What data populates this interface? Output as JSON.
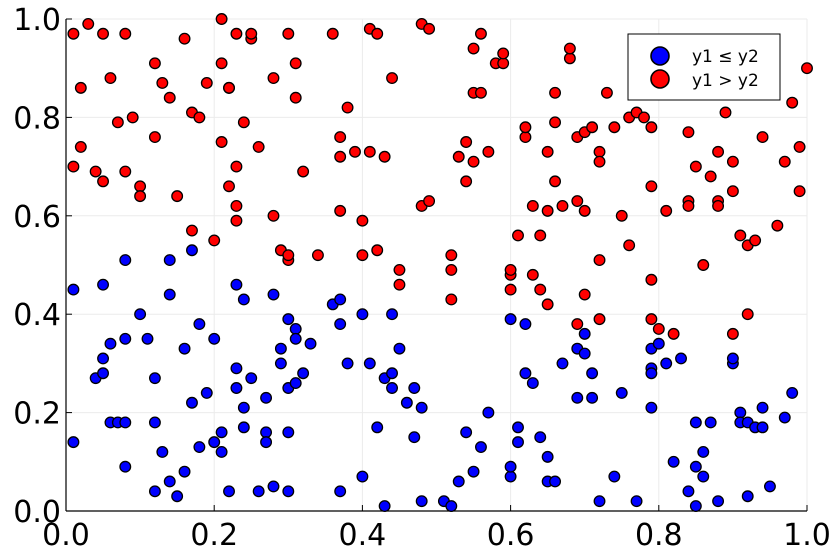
{
  "chart_data": {
    "type": "scatter",
    "title": "",
    "xlabel": "",
    "ylabel": "",
    "xlim": [
      0,
      1
    ],
    "ylim": [
      0,
      1
    ],
    "xticks": [
      "0.0",
      "0.2",
      "0.4",
      "0.6",
      "0.8",
      "1.0"
    ],
    "yticks": [
      "0.0",
      "0.2",
      "0.4",
      "0.6",
      "0.8",
      "1.0"
    ],
    "grid": true,
    "legend_position": "top-right",
    "series": [
      {
        "name": "y1 ≤ y2",
        "color": "#0000ff",
        "points": [
          [
            0.01,
            0.45
          ],
          [
            0.01,
            0.14
          ],
          [
            0.04,
            0.27
          ],
          [
            0.05,
            0.46
          ],
          [
            0.05,
            0.31
          ],
          [
            0.05,
            0.28
          ],
          [
            0.06,
            0.18
          ],
          [
            0.06,
            0.34
          ],
          [
            0.07,
            0.18
          ],
          [
            0.08,
            0.51
          ],
          [
            0.08,
            0.35
          ],
          [
            0.08,
            0.18
          ],
          [
            0.08,
            0.09
          ],
          [
            0.1,
            0.4
          ],
          [
            0.11,
            0.35
          ],
          [
            0.12,
            0.27
          ],
          [
            0.12,
            0.18
          ],
          [
            0.12,
            0.04
          ],
          [
            0.13,
            0.12
          ],
          [
            0.14,
            0.51
          ],
          [
            0.14,
            0.06
          ],
          [
            0.14,
            0.44
          ],
          [
            0.15,
            0.03
          ],
          [
            0.16,
            0.33
          ],
          [
            0.16,
            0.08
          ],
          [
            0.17,
            0.53
          ],
          [
            0.17,
            0.22
          ],
          [
            0.18,
            0.38
          ],
          [
            0.18,
            0.13
          ],
          [
            0.19,
            0.24
          ],
          [
            0.2,
            0.35
          ],
          [
            0.2,
            0.14
          ],
          [
            0.21,
            0.12
          ],
          [
            0.21,
            0.16
          ],
          [
            0.22,
            0.04
          ],
          [
            0.23,
            0.46
          ],
          [
            0.23,
            0.29
          ],
          [
            0.23,
            0.25
          ],
          [
            0.24,
            0.17
          ],
          [
            0.24,
            0.21
          ],
          [
            0.24,
            0.43
          ],
          [
            0.25,
            0.27
          ],
          [
            0.26,
            0.04
          ],
          [
            0.27,
            0.16
          ],
          [
            0.27,
            0.23
          ],
          [
            0.27,
            0.14
          ],
          [
            0.28,
            0.44
          ],
          [
            0.28,
            0.05
          ],
          [
            0.29,
            0.3
          ],
          [
            0.29,
            0.33
          ],
          [
            0.3,
            0.25
          ],
          [
            0.3,
            0.04
          ],
          [
            0.3,
            0.16
          ],
          [
            0.3,
            0.39
          ],
          [
            0.31,
            0.37
          ],
          [
            0.31,
            0.35
          ],
          [
            0.31,
            0.26
          ],
          [
            0.32,
            0.28
          ],
          [
            0.33,
            0.34
          ],
          [
            0.36,
            0.42
          ],
          [
            0.37,
            0.43
          ],
          [
            0.37,
            0.38
          ],
          [
            0.37,
            0.04
          ],
          [
            0.38,
            0.3
          ],
          [
            0.4,
            0.4
          ],
          [
            0.4,
            0.07
          ],
          [
            0.41,
            0.3
          ],
          [
            0.42,
            0.17
          ],
          [
            0.43,
            0.01
          ],
          [
            0.43,
            0.27
          ],
          [
            0.44,
            0.4
          ],
          [
            0.44,
            0.25
          ],
          [
            0.44,
            0.28
          ],
          [
            0.45,
            0.33
          ],
          [
            0.46,
            0.22
          ],
          [
            0.47,
            0.15
          ],
          [
            0.47,
            0.25
          ],
          [
            0.48,
            0.21
          ],
          [
            0.48,
            0.02
          ],
          [
            0.51,
            0.02
          ],
          [
            0.52,
            0.01
          ],
          [
            0.53,
            0.06
          ],
          [
            0.54,
            0.16
          ],
          [
            0.55,
            0.08
          ],
          [
            0.56,
            0.13
          ],
          [
            0.57,
            0.2
          ],
          [
            0.6,
            0.07
          ],
          [
            0.6,
            0.09
          ],
          [
            0.6,
            0.39
          ],
          [
            0.61,
            0.17
          ],
          [
            0.61,
            0.14
          ],
          [
            0.62,
            0.38
          ],
          [
            0.62,
            0.28
          ],
          [
            0.63,
            0.26
          ],
          [
            0.64,
            0.15
          ],
          [
            0.65,
            0.06
          ],
          [
            0.65,
            0.11
          ],
          [
            0.66,
            0.06
          ],
          [
            0.67,
            0.3
          ],
          [
            0.69,
            0.23
          ],
          [
            0.69,
            0.33
          ],
          [
            0.7,
            0.32
          ],
          [
            0.7,
            0.36
          ],
          [
            0.71,
            0.28
          ],
          [
            0.71,
            0.23
          ],
          [
            0.72,
            0.02
          ],
          [
            0.74,
            0.07
          ],
          [
            0.75,
            0.24
          ],
          [
            0.77,
            0.02
          ],
          [
            0.79,
            0.29
          ],
          [
            0.79,
            0.28
          ],
          [
            0.79,
            0.21
          ],
          [
            0.79,
            0.33
          ],
          [
            0.8,
            0.34
          ],
          [
            0.81,
            0.3
          ],
          [
            0.82,
            0.1
          ],
          [
            0.83,
            0.31
          ],
          [
            0.84,
            0.04
          ],
          [
            0.85,
            0.18
          ],
          [
            0.85,
            0.09
          ],
          [
            0.85,
            0.01
          ],
          [
            0.86,
            0.12
          ],
          [
            0.86,
            0.07
          ],
          [
            0.87,
            0.18
          ],
          [
            0.88,
            0.02
          ],
          [
            0.9,
            0.3
          ],
          [
            0.9,
            0.31
          ],
          [
            0.91,
            0.2
          ],
          [
            0.91,
            0.18
          ],
          [
            0.92,
            0.03
          ],
          [
            0.92,
            0.18
          ],
          [
            0.93,
            0.17
          ],
          [
            0.94,
            0.21
          ],
          [
            0.94,
            0.17
          ],
          [
            0.95,
            0.05
          ],
          [
            0.97,
            0.19
          ],
          [
            0.98,
            0.24
          ]
        ]
      },
      {
        "name": "y1 > y2",
        "color": "#ff0000",
        "points": [
          [
            0.01,
            0.7
          ],
          [
            0.01,
            0.97
          ],
          [
            0.02,
            0.86
          ],
          [
            0.02,
            0.74
          ],
          [
            0.03,
            0.99
          ],
          [
            0.04,
            0.69
          ],
          [
            0.05,
            0.67
          ],
          [
            0.05,
            0.97
          ],
          [
            0.06,
            0.88
          ],
          [
            0.07,
            0.79
          ],
          [
            0.08,
            0.97
          ],
          [
            0.08,
            0.69
          ],
          [
            0.09,
            0.8
          ],
          [
            0.1,
            0.66
          ],
          [
            0.1,
            0.64
          ],
          [
            0.12,
            0.91
          ],
          [
            0.12,
            0.76
          ],
          [
            0.13,
            0.87
          ],
          [
            0.14,
            0.84
          ],
          [
            0.15,
            0.64
          ],
          [
            0.16,
            0.96
          ],
          [
            0.17,
            0.81
          ],
          [
            0.17,
            0.57
          ],
          [
            0.18,
            0.8
          ],
          [
            0.19,
            0.87
          ],
          [
            0.2,
            0.55
          ],
          [
            0.21,
            1.0
          ],
          [
            0.21,
            0.91
          ],
          [
            0.21,
            0.75
          ],
          [
            0.22,
            0.86
          ],
          [
            0.22,
            0.66
          ],
          [
            0.22,
            0.86
          ],
          [
            0.23,
            0.97
          ],
          [
            0.23,
            0.7
          ],
          [
            0.23,
            0.62
          ],
          [
            0.23,
            0.59
          ],
          [
            0.24,
            0.79
          ],
          [
            0.25,
            0.96
          ],
          [
            0.25,
            0.97
          ],
          [
            0.26,
            0.74
          ],
          [
            0.28,
            0.6
          ],
          [
            0.28,
            0.88
          ],
          [
            0.29,
            0.53
          ],
          [
            0.3,
            0.51
          ],
          [
            0.3,
            0.52
          ],
          [
            0.3,
            0.97
          ],
          [
            0.31,
            0.91
          ],
          [
            0.31,
            0.84
          ],
          [
            0.32,
            0.69
          ],
          [
            0.34,
            0.52
          ],
          [
            0.36,
            0.97
          ],
          [
            0.37,
            0.72
          ],
          [
            0.37,
            0.76
          ],
          [
            0.37,
            0.61
          ],
          [
            0.38,
            0.82
          ],
          [
            0.39,
            0.73
          ],
          [
            0.4,
            0.59
          ],
          [
            0.4,
            0.52
          ],
          [
            0.41,
            0.98
          ],
          [
            0.41,
            0.73
          ],
          [
            0.42,
            0.53
          ],
          [
            0.42,
            0.97
          ],
          [
            0.43,
            0.72
          ],
          [
            0.44,
            0.88
          ],
          [
            0.45,
            0.49
          ],
          [
            0.45,
            0.46
          ],
          [
            0.48,
            0.99
          ],
          [
            0.48,
            0.62
          ],
          [
            0.49,
            0.63
          ],
          [
            0.49,
            0.98
          ],
          [
            0.52,
            0.49
          ],
          [
            0.52,
            0.43
          ],
          [
            0.52,
            0.52
          ],
          [
            0.53,
            0.72
          ],
          [
            0.54,
            0.67
          ],
          [
            0.54,
            0.75
          ],
          [
            0.55,
            0.94
          ],
          [
            0.55,
            0.85
          ],
          [
            0.55,
            0.71
          ],
          [
            0.56,
            0.85
          ],
          [
            0.56,
            0.97
          ],
          [
            0.57,
            0.73
          ],
          [
            0.58,
            0.91
          ],
          [
            0.59,
            0.91
          ],
          [
            0.59,
            0.93
          ],
          [
            0.6,
            0.48
          ],
          [
            0.6,
            0.49
          ],
          [
            0.6,
            0.45
          ],
          [
            0.61,
            0.56
          ],
          [
            0.62,
            0.76
          ],
          [
            0.62,
            0.78
          ],
          [
            0.63,
            0.62
          ],
          [
            0.63,
            0.48
          ],
          [
            0.64,
            0.45
          ],
          [
            0.64,
            0.56
          ],
          [
            0.65,
            0.42
          ],
          [
            0.65,
            0.61
          ],
          [
            0.65,
            0.73
          ],
          [
            0.66,
            0.79
          ],
          [
            0.66,
            0.67
          ],
          [
            0.66,
            0.85
          ],
          [
            0.67,
            0.62
          ],
          [
            0.68,
            0.92
          ],
          [
            0.68,
            0.94
          ],
          [
            0.69,
            0.38
          ],
          [
            0.69,
            0.63
          ],
          [
            0.69,
            0.76
          ],
          [
            0.7,
            0.61
          ],
          [
            0.7,
            0.44
          ],
          [
            0.7,
            0.77
          ],
          [
            0.71,
            0.78
          ],
          [
            0.72,
            0.73
          ],
          [
            0.72,
            0.71
          ],
          [
            0.72,
            0.51
          ],
          [
            0.72,
            0.39
          ],
          [
            0.73,
            0.85
          ],
          [
            0.74,
            0.78
          ],
          [
            0.75,
            0.6
          ],
          [
            0.76,
            0.54
          ],
          [
            0.76,
            0.8
          ],
          [
            0.77,
            0.81
          ],
          [
            0.78,
            0.8
          ],
          [
            0.79,
            0.47
          ],
          [
            0.79,
            0.66
          ],
          [
            0.79,
            0.78
          ],
          [
            0.79,
            0.39
          ],
          [
            0.8,
            0.37
          ],
          [
            0.81,
            0.61
          ],
          [
            0.81,
            0.86
          ],
          [
            0.82,
            0.36
          ],
          [
            0.84,
            0.63
          ],
          [
            0.84,
            0.62
          ],
          [
            0.84,
            0.77
          ],
          [
            0.85,
            0.7
          ],
          [
            0.86,
            0.5
          ],
          [
            0.87,
            0.68
          ],
          [
            0.88,
            0.73
          ],
          [
            0.88,
            0.63
          ],
          [
            0.88,
            0.62
          ],
          [
            0.89,
            0.81
          ],
          [
            0.9,
            0.71
          ],
          [
            0.9,
            0.65
          ],
          [
            0.9,
            0.36
          ],
          [
            0.91,
            0.56
          ],
          [
            0.92,
            0.4
          ],
          [
            0.92,
            0.54
          ],
          [
            0.93,
            0.55
          ],
          [
            0.94,
            0.76
          ],
          [
            0.96,
            0.58
          ],
          [
            0.97,
            0.71
          ],
          [
            0.98,
            0.83
          ],
          [
            0.99,
            0.65
          ],
          [
            0.99,
            0.74
          ],
          [
            1.0,
            0.9
          ]
        ]
      }
    ]
  }
}
